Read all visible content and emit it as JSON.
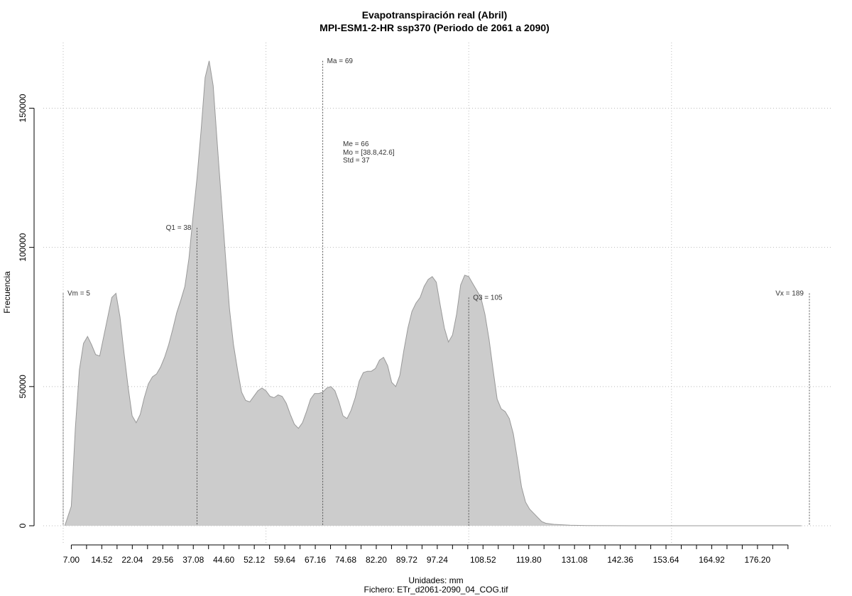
{
  "chart_data": {
    "type": "area",
    "title": "Evapotranspiración real (Abril)",
    "subtitle": "MPI-ESM1-2-HR ssp370 (Periodo de 2061 a 2090)",
    "xlabel": "Unidades: mm",
    "ylabel": "Frecuencia",
    "footer": "Fichero: ETr_d2061-2090_04_COG.tif",
    "xlim": [
      5,
      189
    ],
    "ylim": [
      0,
      170000
    ],
    "grid": true,
    "fill_color": "#cccccc",
    "line_color": "#999999",
    "x_ticks": [
      7.0,
      14.52,
      22.04,
      29.56,
      37.08,
      44.6,
      52.12,
      59.64,
      67.16,
      74.68,
      82.2,
      89.72,
      97.24,
      108.52,
      119.8,
      131.08,
      142.36,
      153.64,
      164.92,
      176.2
    ],
    "x_tick_labels": [
      "7.00",
      "14.52",
      "22.04",
      "29.56",
      "37.08",
      "44.60",
      "52.12",
      "59.64",
      "67.16",
      "74.68",
      "82.20",
      "89.72",
      "97.24",
      "108.52",
      "119.80",
      "131.08",
      "142.36",
      "153.64",
      "164.92",
      "176.20"
    ],
    "x_minor_ticks": [
      7.0,
      10.76,
      14.52,
      18.28,
      22.04,
      25.8,
      29.56,
      33.32,
      37.08,
      40.84,
      44.6,
      48.36,
      52.12,
      55.88,
      59.64,
      63.4,
      67.16,
      70.92,
      74.68,
      78.44,
      82.2,
      85.96,
      89.72,
      93.48,
      97.24,
      101.0,
      104.76,
      108.52,
      112.28,
      116.04,
      119.8,
      123.56,
      127.32,
      131.08,
      134.84,
      138.6,
      142.36,
      146.12,
      149.88,
      153.64,
      157.4,
      161.16,
      164.92,
      168.68,
      172.44,
      176.2,
      179.96,
      183.72
    ],
    "y_ticks": [
      0,
      50000,
      100000,
      150000
    ],
    "y_tick_labels": [
      "0",
      "50000",
      "100000",
      "150000"
    ],
    "x_grid": [
      5,
      55,
      105,
      155
    ],
    "points": [
      [
        5.4,
        0
      ],
      [
        7.0,
        7000
      ],
      [
        8.0,
        35000
      ],
      [
        9.0,
        56000
      ],
      [
        10.0,
        65500
      ],
      [
        11.0,
        68000
      ],
      [
        12.0,
        65000
      ],
      [
        13.0,
        61500
      ],
      [
        14.0,
        61000
      ],
      [
        15.0,
        68000
      ],
      [
        16.0,
        75000
      ],
      [
        17.0,
        82000
      ],
      [
        18.0,
        83500
      ],
      [
        19.0,
        75000
      ],
      [
        20.0,
        62000
      ],
      [
        21.0,
        50000
      ],
      [
        22.0,
        39500
      ],
      [
        23.0,
        37000
      ],
      [
        24.0,
        40000
      ],
      [
        25.0,
        46000
      ],
      [
        26.0,
        51000
      ],
      [
        27.0,
        53500
      ],
      [
        28.0,
        54500
      ],
      [
        29.0,
        57000
      ],
      [
        30.0,
        60500
      ],
      [
        31.0,
        65000
      ],
      [
        32.0,
        70500
      ],
      [
        33.0,
        76500
      ],
      [
        34.0,
        81000
      ],
      [
        35.0,
        86000
      ],
      [
        36.0,
        96000
      ],
      [
        37.0,
        111000
      ],
      [
        38.0,
        125000
      ],
      [
        39.0,
        142000
      ],
      [
        40.0,
        161000
      ],
      [
        41.0,
        167000
      ],
      [
        42.0,
        158000
      ],
      [
        43.0,
        137000
      ],
      [
        44.0,
        117000
      ],
      [
        45.0,
        97000
      ],
      [
        46.0,
        78000
      ],
      [
        47.0,
        65000
      ],
      [
        48.0,
        56000
      ],
      [
        49.0,
        48000
      ],
      [
        50.0,
        45000
      ],
      [
        51.0,
        44500
      ],
      [
        52.0,
        46500
      ],
      [
        53.0,
        48500
      ],
      [
        54.0,
        49500
      ],
      [
        55.0,
        48500
      ],
      [
        56.0,
        46500
      ],
      [
        57.0,
        46000
      ],
      [
        58.0,
        47000
      ],
      [
        59.0,
        46500
      ],
      [
        60.0,
        44000
      ],
      [
        61.0,
        40000
      ],
      [
        62.0,
        36500
      ],
      [
        63.0,
        35000
      ],
      [
        64.0,
        37000
      ],
      [
        65.0,
        41000
      ],
      [
        66.0,
        45500
      ],
      [
        67.0,
        47500
      ],
      [
        68.0,
        47500
      ],
      [
        69.0,
        48000
      ],
      [
        70.0,
        49500
      ],
      [
        71.0,
        50000
      ],
      [
        72.0,
        48500
      ],
      [
        73.0,
        44500
      ],
      [
        74.0,
        39500
      ],
      [
        75.0,
        38500
      ],
      [
        76.0,
        41500
      ],
      [
        77.0,
        46000
      ],
      [
        78.0,
        52000
      ],
      [
        79.0,
        55000
      ],
      [
        80.0,
        55500
      ],
      [
        81.0,
        55500
      ],
      [
        82.0,
        56500
      ],
      [
        83.0,
        59500
      ],
      [
        84.0,
        60500
      ],
      [
        85.0,
        57500
      ],
      [
        86.0,
        51500
      ],
      [
        87.0,
        50000
      ],
      [
        88.0,
        54000
      ],
      [
        89.0,
        63000
      ],
      [
        90.0,
        71000
      ],
      [
        91.0,
        77000
      ],
      [
        92.0,
        80000
      ],
      [
        93.0,
        82000
      ],
      [
        94.0,
        86000
      ],
      [
        95.0,
        88500
      ],
      [
        96.0,
        89500
      ],
      [
        97.0,
        87500
      ],
      [
        98.0,
        79000
      ],
      [
        99.0,
        71000
      ],
      [
        100.0,
        66000
      ],
      [
        101.0,
        68500
      ],
      [
        102.0,
        76000
      ],
      [
        103.0,
        86500
      ],
      [
        104.0,
        90000
      ],
      [
        105.0,
        89500
      ],
      [
        106.0,
        87000
      ],
      [
        107.0,
        84500
      ],
      [
        108.0,
        82000
      ],
      [
        109.0,
        76000
      ],
      [
        110.0,
        67000
      ],
      [
        111.0,
        56000
      ],
      [
        112.0,
        45500
      ],
      [
        113.0,
        42000
      ],
      [
        114.0,
        41000
      ],
      [
        115.0,
        38500
      ],
      [
        116.0,
        33000
      ],
      [
        117.0,
        24000
      ],
      [
        118.0,
        14000
      ],
      [
        119.0,
        8500
      ],
      [
        120.0,
        6000
      ],
      [
        121.0,
        4500
      ],
      [
        122.0,
        3000
      ],
      [
        123.0,
        1500
      ],
      [
        124.0,
        900
      ],
      [
        126.0,
        500
      ],
      [
        130.0,
        200
      ],
      [
        134.0,
        80
      ],
      [
        140.0,
        30
      ],
      [
        150.0,
        10
      ],
      [
        160.0,
        5
      ],
      [
        170.0,
        2
      ],
      [
        180.0,
        1
      ],
      [
        187.0,
        0
      ]
    ],
    "markers": [
      {
        "label": "Vm = 5",
        "x": 5,
        "y": 83500,
        "anchor": "start"
      },
      {
        "label": "Q1 = 38",
        "x": 38,
        "y": 107000,
        "anchor": "end"
      },
      {
        "label": "Ma = 69",
        "x": 69,
        "y": 167000,
        "anchor": "start"
      },
      {
        "label": "Q3 = 105",
        "x": 105,
        "y": 82000,
        "anchor": "start"
      },
      {
        "label": "Vx = 189",
        "x": 189,
        "y": 83500,
        "anchor": "end"
      }
    ],
    "stats": [
      "Me = 66",
      "Mo = [38.8,42.6]",
      "Std = 37"
    ]
  }
}
